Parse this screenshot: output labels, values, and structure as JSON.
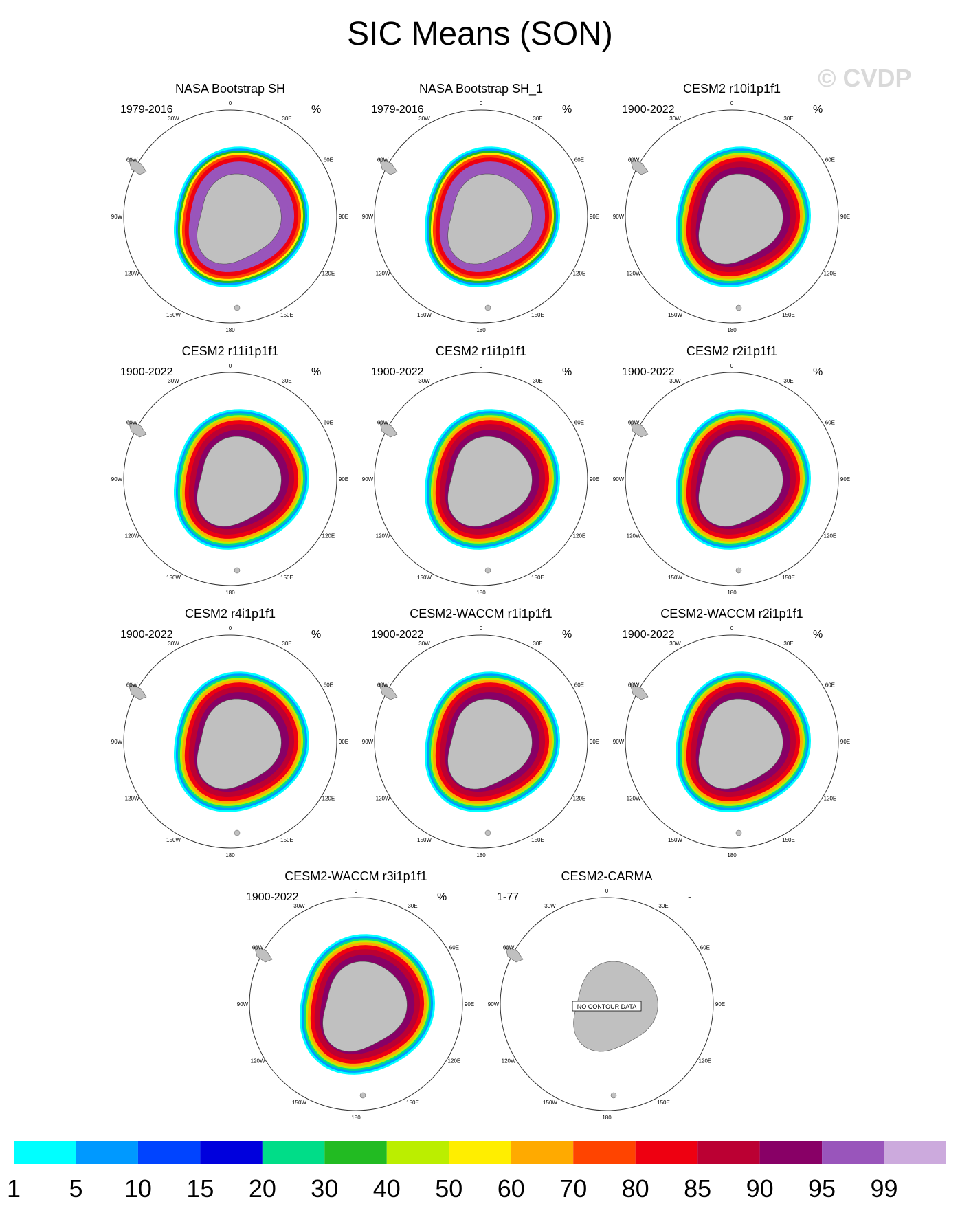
{
  "title": "SIC Means (SON)",
  "watermark": "© CVDP",
  "chart_data": [
    {
      "type": "heatmap",
      "projection": "south-polar-stereographic",
      "title": "NASA Bootstrap SH",
      "period": "1979-2016",
      "units": "%",
      "field": "observed",
      "no_data": false
    },
    {
      "type": "heatmap",
      "projection": "south-polar-stereographic",
      "title": "NASA Bootstrap SH_1",
      "period": "1979-2016",
      "units": "%",
      "field": "observed",
      "no_data": false
    },
    {
      "type": "heatmap",
      "projection": "south-polar-stereographic",
      "title": "CESM2 r10i1p1f1",
      "period": "1900-2022",
      "units": "%",
      "field": "model",
      "no_data": false
    },
    {
      "type": "heatmap",
      "projection": "south-polar-stereographic",
      "title": "CESM2 r11i1p1f1",
      "period": "1900-2022",
      "units": "%",
      "field": "model",
      "no_data": false
    },
    {
      "type": "heatmap",
      "projection": "south-polar-stereographic",
      "title": "CESM2 r1i1p1f1",
      "period": "1900-2022",
      "units": "%",
      "field": "model",
      "no_data": false
    },
    {
      "type": "heatmap",
      "projection": "south-polar-stereographic",
      "title": "CESM2 r2i1p1f1",
      "period": "1900-2022",
      "units": "%",
      "field": "model",
      "no_data": false
    },
    {
      "type": "heatmap",
      "projection": "south-polar-stereographic",
      "title": "CESM2 r4i1p1f1",
      "period": "1900-2022",
      "units": "%",
      "field": "model",
      "no_data": false
    },
    {
      "type": "heatmap",
      "projection": "south-polar-stereographic",
      "title": "CESM2-WACCM r1i1p1f1",
      "period": "1900-2022",
      "units": "%",
      "field": "model",
      "no_data": false
    },
    {
      "type": "heatmap",
      "projection": "south-polar-stereographic",
      "title": "CESM2-WACCM r2i1p1f1",
      "period": "1900-2022",
      "units": "%",
      "field": "model",
      "no_data": false
    },
    {
      "type": "heatmap",
      "projection": "south-polar-stereographic",
      "title": "CESM2-WACCM r3i1p1f1",
      "period": "1900-2022",
      "units": "%",
      "field": "model",
      "no_data": false
    },
    {
      "type": "heatmap",
      "projection": "south-polar-stereographic",
      "title": "CESM2-CARMA",
      "period": "1-77",
      "units": "-",
      "field": "none",
      "no_data": true,
      "no_data_text": "NO CONTOUR DATA"
    }
  ],
  "longitude_labels": [
    "0",
    "30E",
    "60E",
    "90E",
    "120E",
    "150E",
    "180",
    "150W",
    "120W",
    "90W",
    "60W",
    "30W"
  ],
  "colorbar": {
    "levels": [
      "1",
      "5",
      "10",
      "15",
      "20",
      "30",
      "40",
      "50",
      "60",
      "70",
      "80",
      "85",
      "90",
      "95",
      "99"
    ],
    "colors": [
      "#00ffff",
      "#0099ff",
      "#0044ff",
      "#0000dd",
      "#00dd88",
      "#22bb22",
      "#bbee00",
      "#ffee00",
      "#ffaa00",
      "#ff4400",
      "#ee0011",
      "#bb0033",
      "#880066",
      "#9955bb",
      "#ccaadd"
    ]
  },
  "colors": {
    "land": "#c0c0c0",
    "ocean": "#ffffff",
    "coast": "#555555"
  }
}
